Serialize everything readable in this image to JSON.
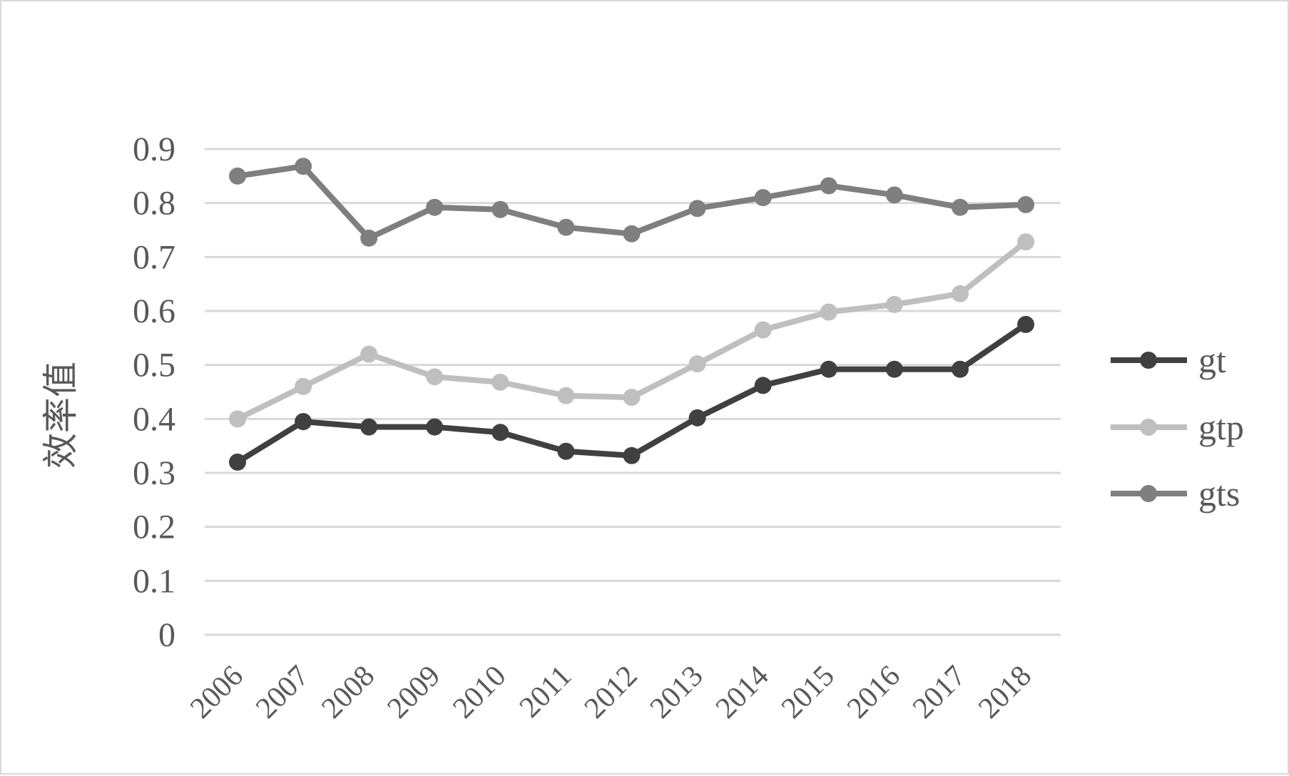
{
  "chart_data": {
    "type": "line",
    "title": "",
    "xlabel": "",
    "ylabel": "效率值",
    "ylim": [
      0,
      0.9
    ],
    "yticks": [
      "0",
      "0.1",
      "0.2",
      "0.3",
      "0.4",
      "0.5",
      "0.6",
      "0.7",
      "0.8",
      "0.9"
    ],
    "categories": [
      "2006",
      "2007",
      "2008",
      "2009",
      "2010",
      "2011",
      "2012",
      "2013",
      "2014",
      "2015",
      "2016",
      "2017",
      "2018"
    ],
    "grid": true,
    "legend_position": "right",
    "series": [
      {
        "name": "gt",
        "color": "#404040",
        "values": [
          0.32,
          0.395,
          0.385,
          0.385,
          0.375,
          0.34,
          0.332,
          0.402,
          0.462,
          0.492,
          0.492,
          0.492,
          0.575
        ]
      },
      {
        "name": "gtp",
        "color": "#bfbfbf",
        "values": [
          0.4,
          0.46,
          0.52,
          0.478,
          0.468,
          0.443,
          0.44,
          0.502,
          0.565,
          0.598,
          0.612,
          0.632,
          0.728
        ]
      },
      {
        "name": "gts",
        "color": "#7f7f7f",
        "values": [
          0.85,
          0.868,
          0.735,
          0.792,
          0.788,
          0.755,
          0.743,
          0.79,
          0.81,
          0.832,
          0.815,
          0.792,
          0.797
        ]
      }
    ]
  }
}
